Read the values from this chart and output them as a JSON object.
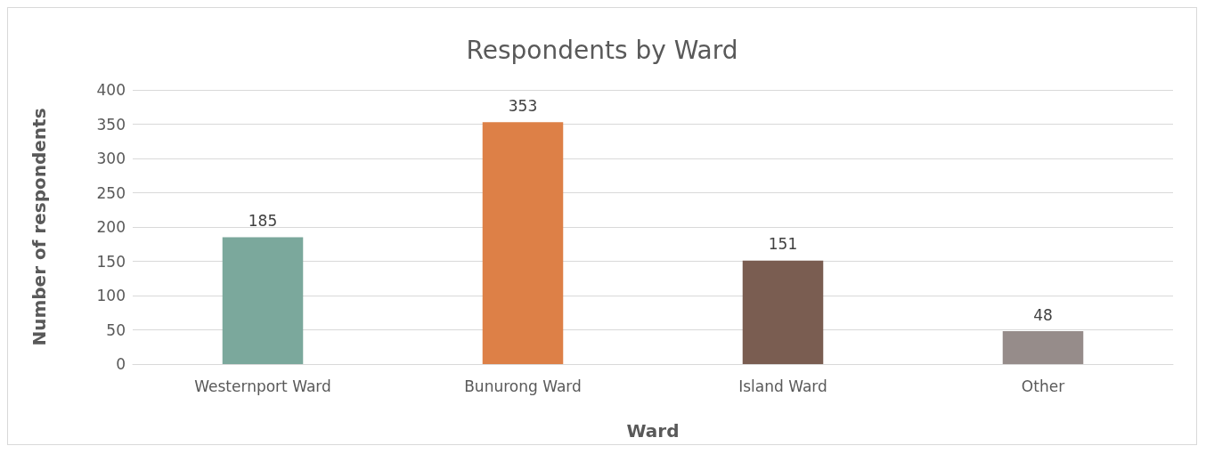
{
  "chart_data": {
    "type": "bar",
    "title": "Respondents by Ward",
    "xlabel": "Ward",
    "ylabel": "Number of respondents",
    "categories": [
      "Westernport Ward",
      "Bunurong Ward",
      "Island Ward",
      "Other"
    ],
    "values": [
      185,
      353,
      151,
      48
    ],
    "colors": [
      "#7ba89c",
      "#dd8047",
      "#7a5d51",
      "#968c8a"
    ],
    "ylim": [
      0,
      400
    ],
    "yticks": [
      0,
      50,
      100,
      150,
      200,
      250,
      300,
      350,
      400
    ],
    "grid": "y",
    "data_labels": true
  }
}
